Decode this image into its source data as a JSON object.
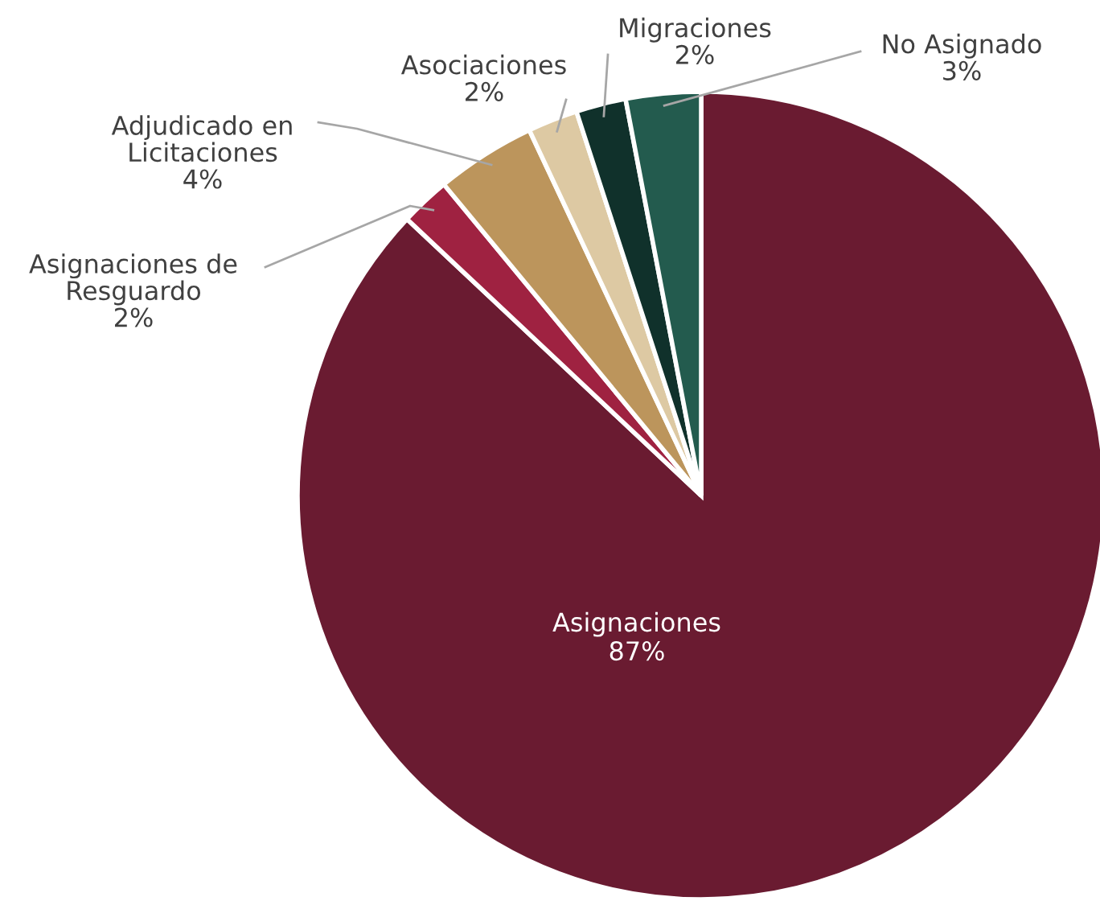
{
  "chart_data": {
    "type": "pie",
    "categories": [
      "Asignaciones",
      "Asignaciones de\nResguardo",
      "Adjudicado en\nLicitaciones",
      "Asociaciones",
      "Migraciones",
      "No Asignado"
    ],
    "values": [
      87,
      2,
      4,
      2,
      2,
      3
    ],
    "colors": [
      "#6a1b31",
      "#9f2241",
      "#bc955c",
      "#ddc9a3",
      "#10312b",
      "#235b4e"
    ],
    "value_labels": [
      "87%",
      "2%",
      "4%",
      "2%",
      "2%",
      "3%"
    ]
  }
}
